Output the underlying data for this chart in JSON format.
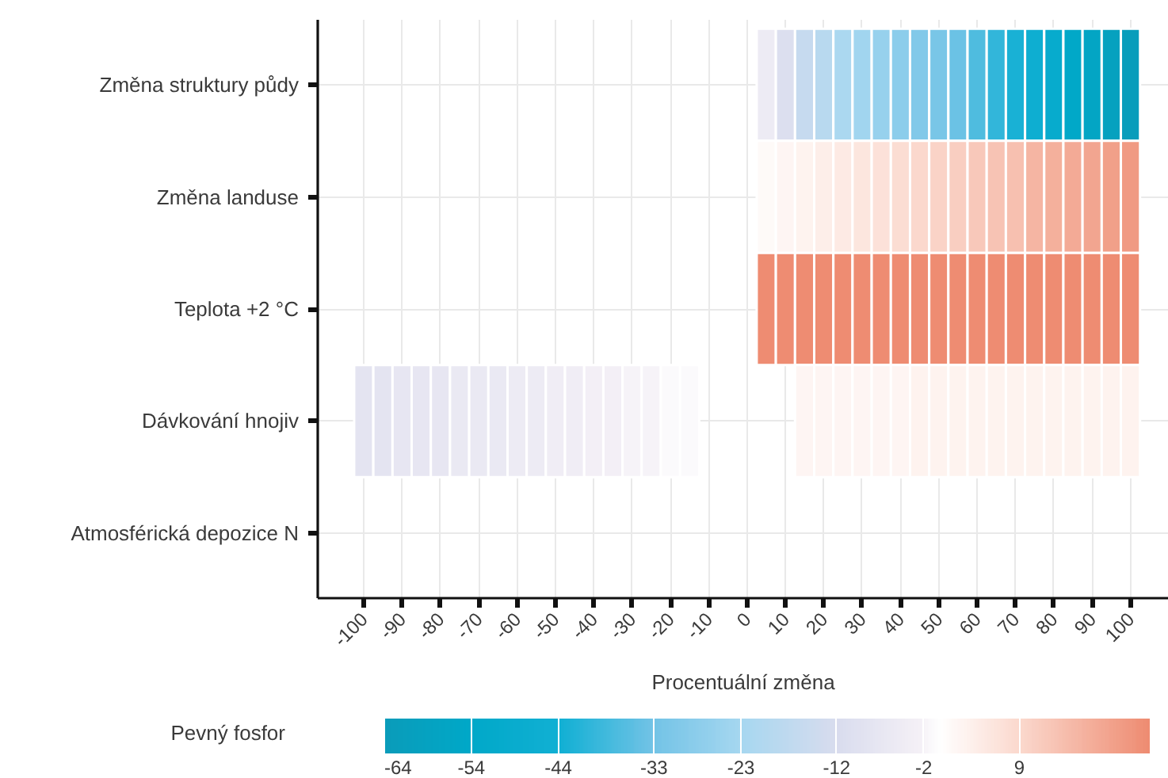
{
  "chart_data": {
    "type": "heatmap",
    "xlabel": "Procentuální změna",
    "clabel": "Pevný fosfor",
    "x": [
      -100,
      -95,
      -90,
      -85,
      -80,
      -75,
      -70,
      -65,
      -60,
      -55,
      -50,
      -45,
      -40,
      -35,
      -30,
      -25,
      -20,
      -15,
      -10,
      -5,
      0,
      5,
      10,
      15,
      20,
      25,
      30,
      35,
      40,
      45,
      50,
      55,
      60,
      65,
      70,
      75,
      80,
      85,
      90,
      95,
      100
    ],
    "xlim": [
      -112,
      110
    ],
    "xticks": [
      -100,
      -90,
      -80,
      -70,
      -60,
      -50,
      -40,
      -30,
      -20,
      -10,
      0,
      10,
      20,
      30,
      40,
      50,
      60,
      70,
      80,
      90,
      100
    ],
    "y_categories": [
      "Změna struktury půdy",
      "Změna landuse",
      "Teplota +2 °C",
      "Dávkování hnojiv",
      "Atmosférická depozice N"
    ],
    "cells": [
      [
        null,
        null,
        null,
        null,
        null,
        null,
        null,
        null,
        null,
        null,
        null,
        null,
        null,
        null,
        null,
        null,
        null,
        null,
        null,
        null,
        null,
        -5,
        -11,
        -16,
        -19,
        -22,
        -24,
        -26,
        -28,
        -30,
        -32,
        -34,
        -37,
        -40,
        -43,
        -46,
        -50,
        -54,
        -57,
        -60,
        -63
      ],
      [
        null,
        null,
        null,
        null,
        null,
        null,
        null,
        null,
        null,
        null,
        null,
        null,
        null,
        null,
        null,
        null,
        null,
        null,
        null,
        null,
        null,
        1,
        2,
        3,
        4,
        5,
        6,
        7,
        8,
        9,
        10,
        11,
        12,
        13,
        14,
        16,
        17,
        18,
        19,
        20,
        21
      ],
      [
        null,
        null,
        null,
        null,
        null,
        null,
        null,
        null,
        null,
        null,
        null,
        null,
        null,
        null,
        null,
        null,
        null,
        null,
        null,
        null,
        null,
        24,
        24,
        24,
        24,
        24,
        24,
        24,
        24,
        24,
        24,
        24,
        24,
        24,
        24,
        24,
        24,
        24,
        24,
        24,
        24
      ],
      [
        -8,
        -8,
        -7,
        -7,
        -7,
        -6,
        -6,
        -6,
        -5,
        -5,
        -4,
        -4,
        -3,
        -3,
        -2,
        -2,
        -1,
        -1,
        null,
        null,
        null,
        null,
        null,
        2,
        2,
        2,
        2,
        2,
        2,
        3,
        3,
        3,
        3,
        3,
        3,
        3,
        3,
        3,
        3,
        3,
        3
      ],
      [
        null,
        null,
        null,
        null,
        null,
        null,
        null,
        null,
        null,
        null,
        null,
        null,
        null,
        null,
        null,
        null,
        null,
        null,
        null,
        null,
        null,
        null,
        null,
        null,
        null,
        null,
        null,
        null,
        null,
        null,
        null,
        null,
        null,
        null,
        null,
        null,
        null,
        null,
        null,
        null,
        null
      ]
    ],
    "clim": [
      -64,
      24
    ],
    "cticks": [
      -64,
      -54,
      -44,
      -33,
      -23,
      -12,
      -2,
      9
    ],
    "grid": true
  }
}
